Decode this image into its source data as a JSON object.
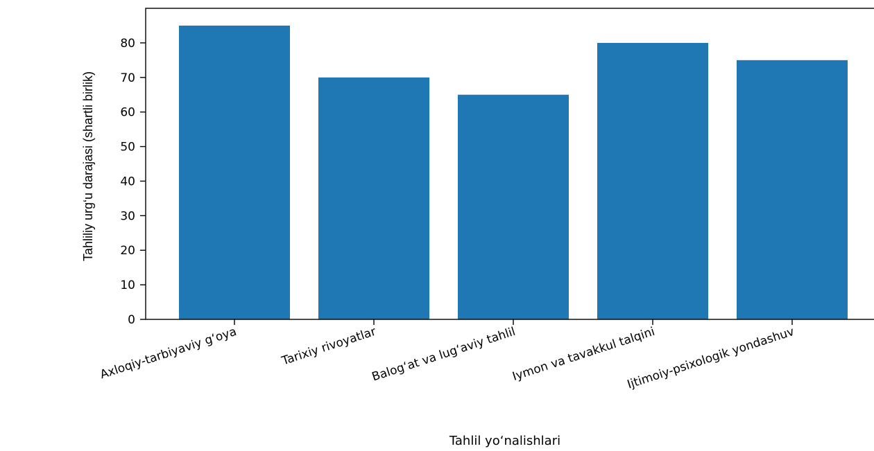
{
  "chart_data": {
    "type": "bar",
    "title": "",
    "xlabel": "Tahlil yo‘nalishlari",
    "ylabel": "Tahliliy urg‘u darajasi (shartli birlik)",
    "categories": [
      "Axloqiy-tarbiyaviy g‘oya",
      "Tarixiy rivoyatlar",
      "Balog‘at va lug‘aviy tahlil",
      "Iymon va tavakkul talqini",
      "Ijtimoiy-psixologik yondashuv"
    ],
    "values": [
      85,
      70,
      65,
      80,
      75
    ],
    "ylim": [
      0,
      90
    ],
    "yticks": [
      0,
      10,
      20,
      30,
      40,
      50,
      60,
      70,
      80
    ],
    "bar_color": "#1f77b4",
    "grid": false,
    "legend": "none"
  }
}
